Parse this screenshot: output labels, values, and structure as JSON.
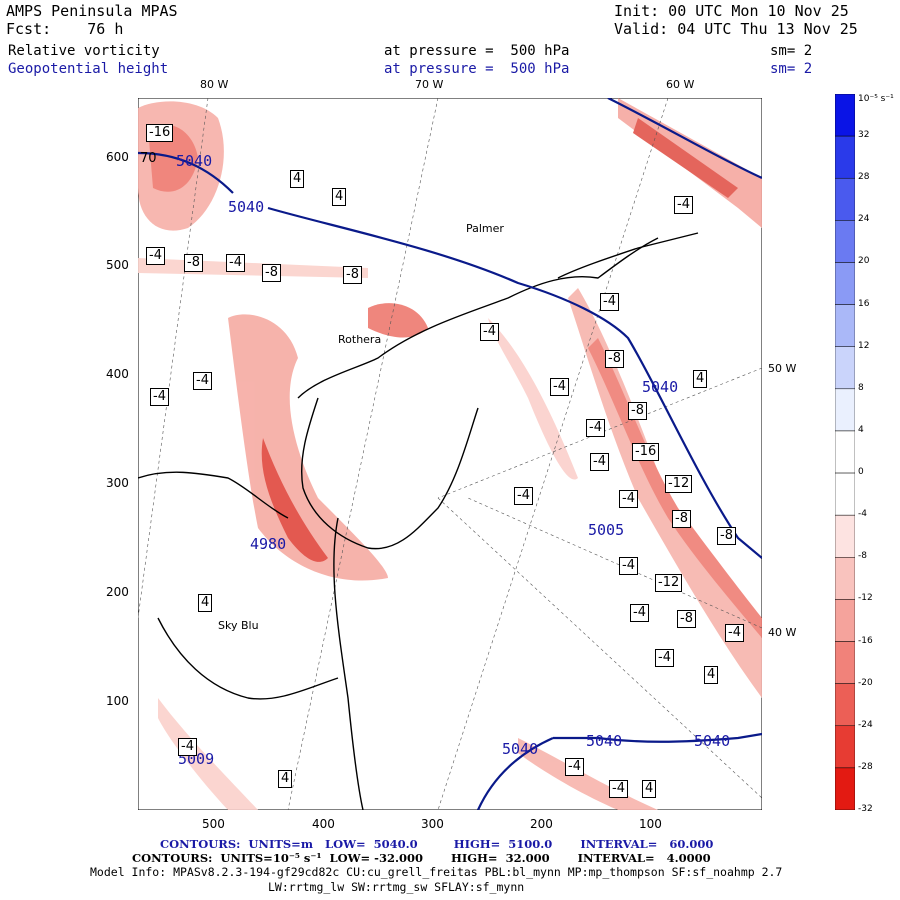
{
  "header": {
    "title": "AMPS Peninsula MPAS",
    "forecast": "Fcst:    76 h",
    "init": "Init: 00 UTC Mon 10 Nov 25",
    "valid": "Valid: 04 UTC Thu 13 Nov 25",
    "field1": {
      "name": "Relative vorticity",
      "level": "at pressure =  500 hPa",
      "sm": "sm= 2"
    },
    "field2": {
      "name": "Geopotential height",
      "level": "at pressure =  500 hPa",
      "sm": "sm= 2"
    }
  },
  "longitude_labels": {
    "lon80": "80 W",
    "lon70": "70 W",
    "lon60": "60 W",
    "lon50": "50 W",
    "lon40": "40 W"
  },
  "axes": {
    "y_ticks": [
      "600",
      "500",
      "400",
      "300",
      "200",
      "100"
    ],
    "x_ticks": [
      "500",
      "400",
      "300",
      "200",
      "100"
    ]
  },
  "colorbar": {
    "unit": "10⁻⁵ s⁻¹",
    "labels": [
      "32",
      "28",
      "24",
      "20",
      "16",
      "12",
      "8",
      "4",
      "0",
      "-4",
      "-8",
      "-12",
      "-16",
      "-20",
      "-24",
      "-28",
      "-32"
    ],
    "colors": [
      "#0a14e6",
      "#2a3aea",
      "#4a5aee",
      "#6a7af2",
      "#8a9af5",
      "#aab8f8",
      "#cad4fb",
      "#eaf0fe",
      "#ffffff",
      "#ffffff",
      "#fde3e1",
      "#f9c3be",
      "#f5a39c",
      "#f1827a",
      "#ec5f56",
      "#e73c33",
      "#e31a12"
    ]
  },
  "map": {
    "place_labels": {
      "palmer": "Palmer",
      "rothera": "Rothera",
      "sky_blu": "Sky Blu"
    },
    "height_labels": [
      "5040",
      "5040",
      "5040",
      "5005",
      "4980",
      "5040",
      "5040",
      "5040",
      "5009"
    ],
    "vorticity_labels": [
      "-16",
      "70",
      "4",
      "4",
      "-4",
      "-4",
      "-8",
      "-4",
      "-8",
      "-8",
      "-4",
      "-4",
      "-4",
      "-4",
      "-4",
      "-8",
      "-8",
      "-16",
      "-12",
      "-8",
      "-4",
      "-4",
      "-8",
      "-4",
      "-4",
      "4",
      "4",
      "-4",
      "-12",
      "-4",
      "-8",
      "-4",
      "-4",
      "4",
      "-4",
      "-4",
      "-4",
      "4",
      "-4",
      "4"
    ]
  },
  "footer": {
    "contours_height": "CONTOURS:  UNITS=m   LOW=  5040.0         HIGH=  5100.0       INTERVAL=   60.000",
    "contours_vort": "CONTOURS:  UNITS=10⁻⁵ s⁻¹  LOW= -32.000       HIGH=  32.000       INTERVAL=   4.0000",
    "model_info": "Model Info: MPASv8.2.3-194-gf29cd82c CU:cu_grell_freitas PBL:bl_mynn MP:mp_thompson SF:sf_noahmp 2.7",
    "model_info2": "LW:rrtmg_lw SW:rrtmg_sw SFLAY:sf_mynn"
  }
}
